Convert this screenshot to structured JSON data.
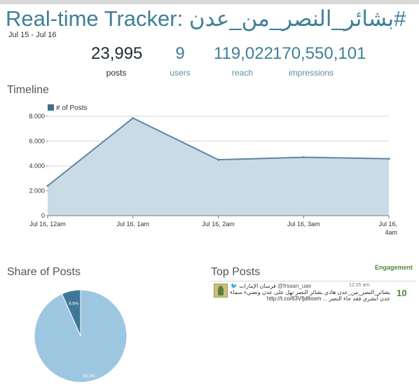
{
  "header": {
    "title_prefix": "Real-time Tracker: ",
    "hashtag": "#بشائر_النصر_من_عدن",
    "date_range": "Jul 15 - Jul 16"
  },
  "stats": [
    {
      "value": "23,995",
      "label": "posts"
    },
    {
      "value": "9",
      "label": "users"
    },
    {
      "value": "119,022",
      "label": "reach"
    },
    {
      "value": "170,550,101",
      "label": "impressions"
    }
  ],
  "timeline": {
    "heading": "Timeline",
    "chart_data": {
      "type": "area",
      "legend": "# of Posts",
      "x": [
        "Jul 16, 12am",
        "Jul 16, 1am",
        "Jul 16, 2am",
        "Jul 16, 3am",
        "Jul 16, 4am"
      ],
      "values": [
        2400,
        7850,
        4500,
        4700,
        4580
      ],
      "y_ticks": [
        "0",
        "2.000",
        "4.000",
        "6.000",
        "8.000"
      ],
      "ylim": [
        0,
        8000
      ],
      "fill_color": "#c9dce6",
      "line_color": "#5f86a3",
      "grid": true,
      "legend_position": "top-left"
    }
  },
  "share": {
    "heading": "Share of Posts",
    "chart_data": {
      "type": "pie",
      "values": [
        93.2,
        6.6
      ],
      "labels": [
        "93.2%",
        "6.6%"
      ],
      "colors": [
        "#9dc7e0",
        "#3f7798"
      ]
    }
  },
  "top_posts": {
    "heading": "Top Posts",
    "engagement_label": "Engagement",
    "posts": [
      {
        "author": "فرسان الإمارات",
        "handle": "@frsaan_uae",
        "time": "12:25 am",
        "text_line1": "بشائر_النصر_من_عدن هادي بشائر النصر تهل على عدن وتضيء سماء اليمن#",
        "text_line2": "عدن أبشري فقد جاء النصر ... http://t.co/83Vfjd8oxm",
        "engagement": "10"
      }
    ]
  },
  "colors": {
    "accent": "#3f7f98",
    "engagement": "#4e8a3c"
  }
}
